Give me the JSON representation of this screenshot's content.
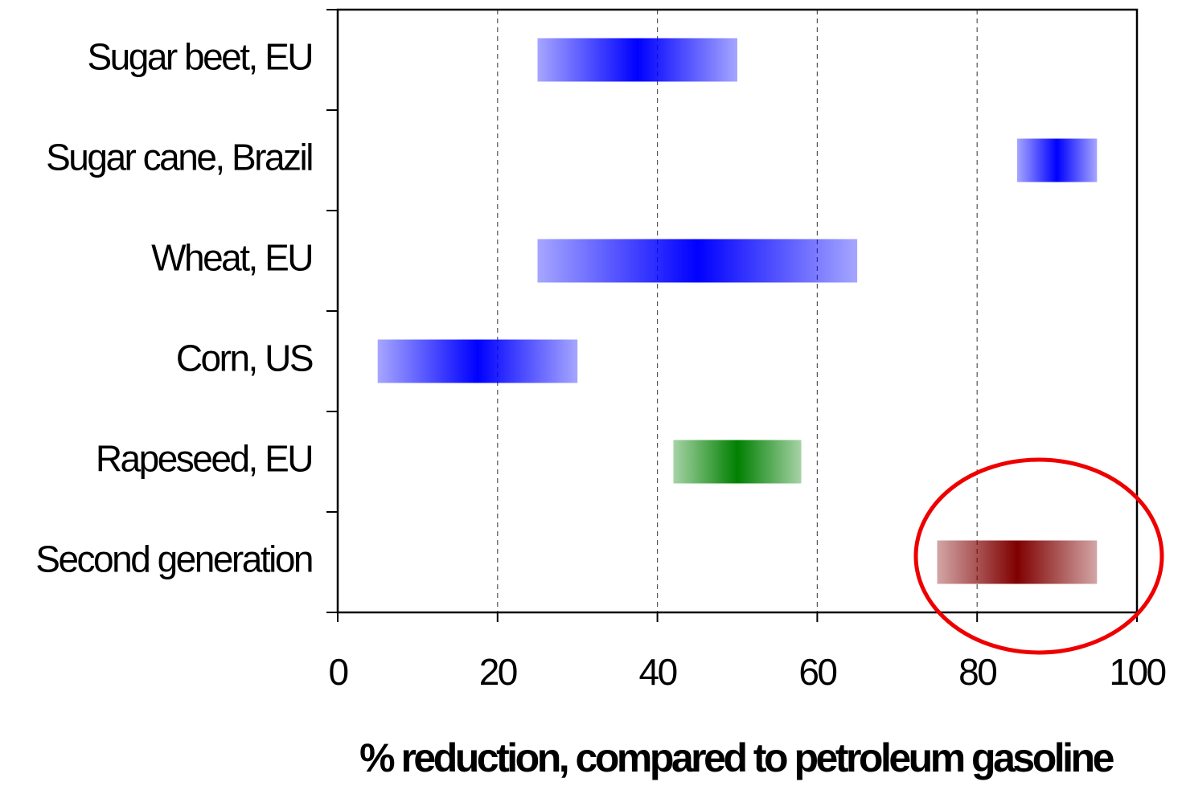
{
  "chart_data": {
    "type": "range_bar",
    "categories": [
      "Sugar beet, EU",
      "Sugar cane, Brazil",
      "Wheat, EU",
      "Corn, US",
      "Rapeseed, EU",
      "Second generation"
    ],
    "values": [
      [
        25,
        50
      ],
      [
        85,
        95
      ],
      [
        25,
        65
      ],
      [
        5,
        30
      ],
      [
        42,
        58
      ],
      [
        75,
        95
      ]
    ],
    "colors": [
      "#0000ff",
      "#0000ff",
      "#0000ff",
      "#0000ff",
      "#008000",
      "#800000"
    ],
    "xlim": [
      0,
      100
    ],
    "xticks": [
      0,
      20,
      40,
      60,
      80,
      100
    ],
    "x_label": "% reduction, compared to petroleum gasoline",
    "grid": true
  }
}
